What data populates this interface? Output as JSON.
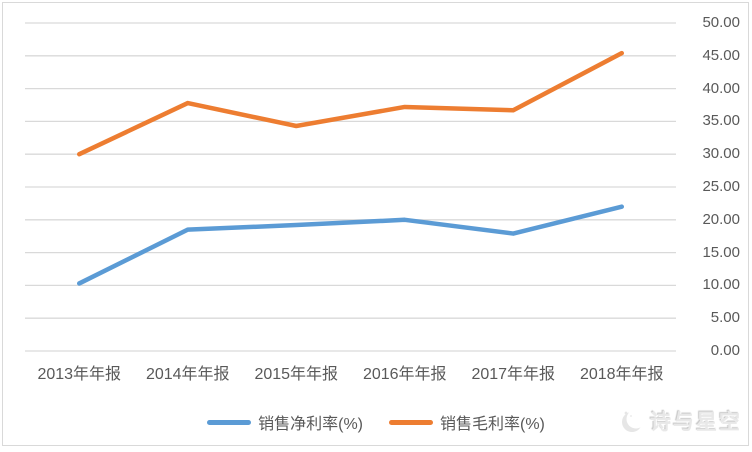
{
  "chart_data": {
    "type": "line",
    "title": "",
    "xlabel": "",
    "ylabel": "",
    "categories": [
      "2013年年报",
      "2014年年报",
      "2015年年报",
      "2016年年报",
      "2017年年报",
      "2018年年报"
    ],
    "series": [
      {
        "id": "net-profit-margin",
        "name": "销售净利率(%)",
        "color": "#5B9BD5",
        "values": [
          10.3,
          18.5,
          19.2,
          20.0,
          17.9,
          22.0
        ]
      },
      {
        "id": "gross-profit-margin",
        "name": "销售毛利率(%)",
        "color": "#ED7D31",
        "values": [
          30.0,
          37.8,
          34.3,
          37.2,
          36.7,
          45.4
        ]
      }
    ],
    "ylim": [
      0,
      50
    ],
    "ytick_step": 5,
    "y_tick_labels": [
      "0.00",
      "5.00",
      "10.00",
      "15.00",
      "20.00",
      "25.00",
      "30.00",
      "35.00",
      "40.00",
      "45.00",
      "50.00"
    ],
    "y_axis_side": "right",
    "grid": "horizontal",
    "legend_position": "bottom",
    "colors": {
      "grid": "#D9D9D9",
      "tick_text": "#595959",
      "border": "#D9D9D9",
      "background": "#FFFFFF"
    }
  },
  "watermark": {
    "text": "诗与星空",
    "icon": "crescent-moon-logo"
  }
}
